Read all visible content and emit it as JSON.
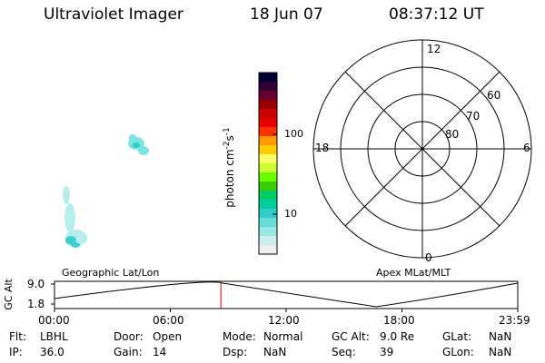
{
  "header": {
    "instrument": "Ultraviolet Imager",
    "date": "18 Jun 07",
    "time": "08:37:12 UT"
  },
  "colorbar": {
    "unit_label": "photon cm",
    "unit_sup1": "-2",
    "unit_mid": "s",
    "unit_sup2": "-1",
    "tick_high": "100",
    "tick_low": "10",
    "colors": [
      "#000033",
      "#330033",
      "#660033",
      "#990000",
      "#cc0000",
      "#e60000",
      "#ff3300",
      "#ff9900",
      "#ffcc00",
      "#ffff66",
      "#ccff33",
      "#66ff00",
      "#33cc00",
      "#00cc66",
      "#00cc99",
      "#33cccc",
      "#66dddd",
      "#99e6e6",
      "#cceeee",
      "#eeeeee"
    ]
  },
  "polar": {
    "mlt_labels": {
      "top": "12",
      "left": "18",
      "right": "6",
      "bottom": "0"
    },
    "lat_labels": [
      "60",
      "70",
      "80"
    ]
  },
  "timeline": {
    "left_label": "Geographic Lat/Lon",
    "right_label": "Apex MLat/MLT",
    "y_axis_title": "GC Alt",
    "y_ticks": [
      "9.0",
      "1.8"
    ],
    "x_ticks": [
      "00:00",
      "06:00",
      "12:00",
      "18:00",
      "23:59"
    ],
    "current_time_hours": 8.62,
    "marker_color": "#cc0000"
  },
  "info": {
    "row1": [
      {
        "label": "Flt:",
        "value": "LBHL"
      },
      {
        "label": "Door:",
        "value": "Open"
      },
      {
        "label": "Mode:",
        "value": "Normal"
      },
      {
        "label": "GC Alt:",
        "value": "9.0 Re"
      },
      {
        "label": "GLat:",
        "value": "NaN"
      }
    ],
    "row2": [
      {
        "label": "IP:",
        "value": "36.0"
      },
      {
        "label": "Gain:",
        "value": "14"
      },
      {
        "label": "Dsp:",
        "value": "NaN"
      },
      {
        "label": "Seq:",
        "value": "39"
      },
      {
        "label": "GLon:",
        "value": "NaN"
      }
    ]
  }
}
